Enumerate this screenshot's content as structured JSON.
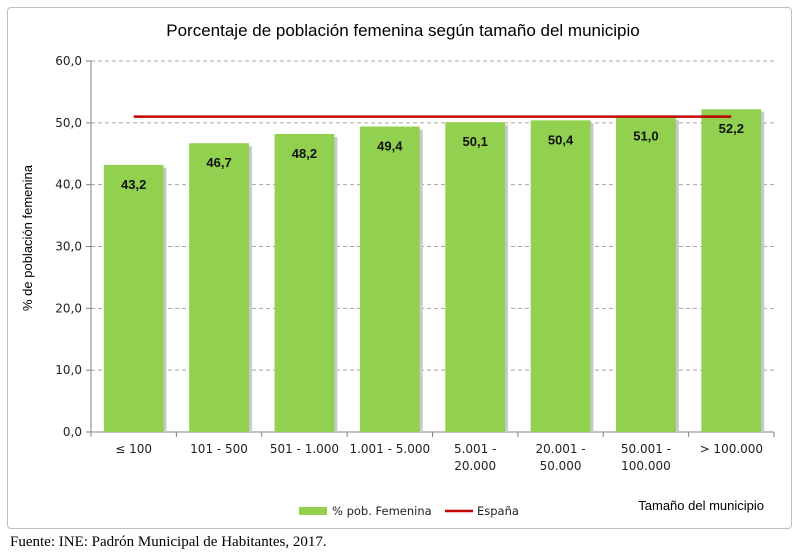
{
  "chart_data": {
    "type": "bar",
    "title": "Porcentaje de población femenina según tamaño del municipio",
    "xlabel": "Tamaño del municipio",
    "ylabel": "% de población femenina",
    "categories": [
      "≤ 100",
      "101 - 500",
      "501 - 1.000",
      "1.001 - 5.000",
      "5.001 - 20.000",
      "20.001 - 50.000",
      "50.001 - 100.000",
      "> 100.000"
    ],
    "category_lines": [
      [
        "≤ 100"
      ],
      [
        "101 - 500"
      ],
      [
        "501 - 1.000"
      ],
      [
        "1.001 - 5.000"
      ],
      [
        "5.001 -",
        "20.000"
      ],
      [
        "20.001 -",
        "50.000"
      ],
      [
        "50.001 -",
        "100.000"
      ],
      [
        "> 100.000"
      ]
    ],
    "series": [
      {
        "name": "% pob. Femenina",
        "type": "bar",
        "color": "#92d050",
        "values": [
          43.2,
          46.7,
          48.2,
          49.4,
          50.1,
          50.4,
          51.0,
          52.2
        ],
        "labels": [
          "43,2",
          "46,7",
          "48,2",
          "49,4",
          "50,1",
          "50,4",
          "51,0",
          "52,2"
        ]
      },
      {
        "name": "España",
        "type": "line",
        "color": "#c00000",
        "value": 51.0
      }
    ],
    "ylim": [
      0,
      60
    ],
    "yticks": [
      0,
      10,
      20,
      30,
      40,
      50,
      60
    ],
    "ytick_labels": [
      "0,0",
      "10,0",
      "20,0",
      "30,0",
      "40,0",
      "50,0",
      "60,0"
    ],
    "grid": "horizontal dashed",
    "legend": "bottom"
  },
  "source": "Fuente: INE: Padrón Municipal de Habitantes, 2017."
}
